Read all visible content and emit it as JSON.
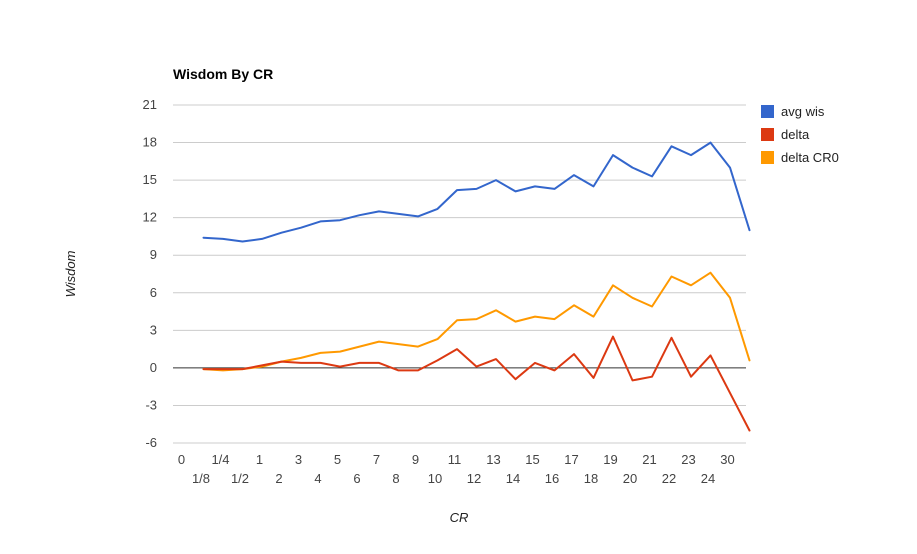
{
  "chart_data": {
    "type": "line",
    "title": "Wisdom By CR",
    "xlabel": "CR",
    "ylabel": "Wisdom",
    "ylim": [
      -6,
      21
    ],
    "y_ticks": [
      -6,
      -3,
      0,
      3,
      6,
      9,
      12,
      15,
      18,
      21
    ],
    "grid": true,
    "legend_position": "right",
    "categories": [
      "0",
      "1/8",
      "1/4",
      "1/2",
      "1",
      "2",
      "3",
      "4",
      "5",
      "6",
      "7",
      "8",
      "9",
      "10",
      "11",
      "12",
      "13",
      "14",
      "15",
      "16",
      "17",
      "18",
      "19",
      "20",
      "21",
      "22",
      "23",
      "24",
      "30"
    ],
    "series": [
      {
        "name": "avg wis",
        "color": "#3366cc",
        "values": [
          10.4,
          10.3,
          10.1,
          10.3,
          10.8,
          11.2,
          11.7,
          11.8,
          12.2,
          12.5,
          12.3,
          12.1,
          12.7,
          14.2,
          14.3,
          15.0,
          14.1,
          14.5,
          14.3,
          15.4,
          14.5,
          17.0,
          16.0,
          15.3,
          17.7,
          17.0,
          18.0,
          16.0,
          11.0
        ]
      },
      {
        "name": "delta",
        "color": "#dc3912",
        "values": [
          -0.1,
          -0.1,
          -0.1,
          0.2,
          0.5,
          0.4,
          0.4,
          0.1,
          0.4,
          0.4,
          -0.2,
          -0.2,
          0.6,
          1.5,
          0.1,
          0.7,
          -0.9,
          0.4,
          -0.2,
          1.1,
          -0.8,
          2.5,
          -1.0,
          -0.7,
          2.4,
          -0.7,
          1.0,
          -2.0,
          -5.0
        ]
      },
      {
        "name": "delta CR0",
        "color": "#ff9900",
        "values": [
          -0.1,
          -0.2,
          -0.1,
          0.1,
          0.5,
          0.8,
          1.2,
          1.3,
          1.7,
          2.1,
          1.9,
          1.7,
          2.3,
          3.8,
          3.9,
          4.6,
          3.7,
          4.1,
          3.9,
          5.0,
          4.1,
          6.6,
          5.6,
          4.9,
          7.3,
          6.6,
          7.6,
          5.6,
          0.6
        ]
      }
    ]
  }
}
